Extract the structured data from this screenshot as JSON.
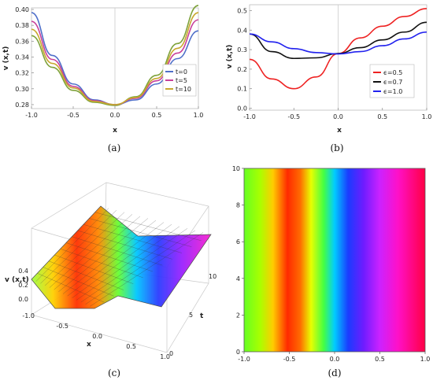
{
  "captions": [
    "(a)",
    "(b)",
    "(c)",
    "(d)"
  ],
  "chart_data": [
    {
      "panel": "(a)",
      "type": "line",
      "xlabel": "x",
      "ylabel": "v (x,t)",
      "xlim": [
        -1.0,
        1.0
      ],
      "ylim": [
        0.275,
        0.402
      ],
      "xticks": [
        "-1.0",
        "-0.5",
        "0.0",
        "0.5",
        "1.0"
      ],
      "yticks": [
        "0.28",
        "0.30",
        "0.32",
        "0.34",
        "0.36",
        "0.38",
        "0.40"
      ],
      "legend_position": "bottom-right",
      "x": [
        -1.0,
        -0.75,
        -0.5,
        -0.25,
        0.0,
        0.25,
        0.5,
        0.75,
        1.0
      ],
      "series": [
        {
          "name": "t=0",
          "color": "#4f6fc9",
          "values": [
            0.396,
            0.342,
            0.306,
            0.286,
            0.28,
            0.286,
            0.306,
            0.338,
            0.373
          ]
        },
        {
          "name": "t=5",
          "color": "#c8409a",
          "values": [
            0.385,
            0.337,
            0.303,
            0.285,
            0.28,
            0.288,
            0.31,
            0.345,
            0.387
          ]
        },
        {
          "name": "t=10",
          "color": "#c8a82f",
          "values": [
            0.375,
            0.332,
            0.301,
            0.284,
            0.28,
            0.289,
            0.313,
            0.351,
            0.396
          ]
        }
      ],
      "extra_series": [
        {
          "color": "#7ea23a",
          "values": [
            0.367,
            0.327,
            0.298,
            0.283,
            0.279,
            0.29,
            0.317,
            0.357,
            0.405
          ]
        }
      ],
      "vline_x": 0.0
    },
    {
      "panel": "(b)",
      "type": "line",
      "xlabel": "x",
      "ylabel": "v (x,t)",
      "xlim": [
        -1.0,
        1.0
      ],
      "ylim": [
        -0.01,
        0.53
      ],
      "xticks": [
        "-1.0",
        "-0.5",
        "0.0",
        "0.5",
        "1.0"
      ],
      "yticks": [
        "0.0",
        "0.1",
        "0.2",
        "0.3",
        "0.4",
        "0.5"
      ],
      "legend_position": "center-right",
      "x": [
        -1.0,
        -0.75,
        -0.5,
        -0.25,
        0.0,
        0.25,
        0.5,
        0.75,
        1.0
      ],
      "series": [
        {
          "name": "ϵ=0.5",
          "color": "#ee2222",
          "values": [
            0.25,
            0.15,
            0.1,
            0.16,
            0.28,
            0.36,
            0.42,
            0.47,
            0.51
          ]
        },
        {
          "name": "ϵ=0.7",
          "color": "#111111",
          "values": [
            0.38,
            0.29,
            0.255,
            0.258,
            0.28,
            0.31,
            0.35,
            0.39,
            0.44
          ]
        },
        {
          "name": "ϵ=1.0",
          "color": "#2222ee",
          "values": [
            0.38,
            0.34,
            0.305,
            0.285,
            0.278,
            0.29,
            0.32,
            0.355,
            0.39
          ]
        }
      ],
      "vline_x": 0.0
    },
    {
      "panel": "(c)",
      "type": "surface3d",
      "zlabel": "v (x,t)",
      "xlabel": "x",
      "ylabel": "t",
      "xticks": [
        "-1.0",
        "-0.5",
        "0.0",
        "0.5",
        "1.0"
      ],
      "tticks": [
        "0",
        "5",
        "10"
      ],
      "zticks": [
        "0.0",
        "0.2",
        "0.4"
      ],
      "xlim": [
        -1.0,
        1.0
      ],
      "tlim": [
        0,
        10
      ],
      "zlim": [
        0.0,
        0.5
      ]
    },
    {
      "panel": "(d)",
      "type": "heatmap",
      "xlim": [
        -1.0,
        1.0
      ],
      "ylim": [
        0,
        10
      ],
      "xticks": [
        "-1.0",
        "-0.5",
        "0.0",
        "0.5",
        "1.0"
      ],
      "yticks": [
        "0",
        "2",
        "4",
        "6",
        "8",
        "10"
      ],
      "color_stops": [
        {
          "x": -1.0,
          "color": "#66ff22"
        },
        {
          "x": -0.82,
          "color": "#aaff00"
        },
        {
          "x": -0.68,
          "color": "#ffcc00"
        },
        {
          "x": -0.52,
          "color": "#ff2a00"
        },
        {
          "x": -0.38,
          "color": "#ff6a00"
        },
        {
          "x": -0.26,
          "color": "#e8ff00"
        },
        {
          "x": -0.12,
          "color": "#44ff44"
        },
        {
          "x": 0.0,
          "color": "#00ccff"
        },
        {
          "x": 0.15,
          "color": "#1a3cff"
        },
        {
          "x": 0.32,
          "color": "#6e1cff"
        },
        {
          "x": 0.5,
          "color": "#cc22ff"
        },
        {
          "x": 0.7,
          "color": "#ff10c8"
        },
        {
          "x": 1.0,
          "color": "#ff0044"
        }
      ]
    }
  ]
}
